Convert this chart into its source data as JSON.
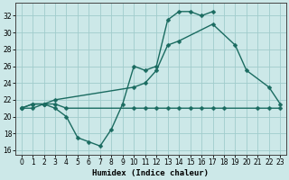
{
  "xlabel": "Humidex (Indice chaleur)",
  "bg_color": "#cce8e8",
  "grid_color": "#a0cccc",
  "line_color": "#1a6b60",
  "line_width": 1.0,
  "marker_size": 2.5,
  "xlim": [
    -0.5,
    23.5
  ],
  "ylim": [
    15.5,
    33.5
  ],
  "yticks": [
    16,
    18,
    20,
    22,
    24,
    26,
    28,
    30,
    32
  ],
  "xticks": [
    0,
    1,
    2,
    3,
    4,
    5,
    6,
    7,
    8,
    9,
    10,
    11,
    12,
    13,
    14,
    15,
    16,
    17,
    18,
    19,
    20,
    21,
    22,
    23
  ],
  "s1_x": [
    0,
    1,
    2,
    3,
    4,
    5,
    6,
    7,
    8,
    9,
    10,
    11,
    12,
    13,
    14,
    15,
    16,
    17
  ],
  "s1_y": [
    21.0,
    21.5,
    21.5,
    21.0,
    20.0,
    17.5,
    17.0,
    16.5,
    18.5,
    21.5,
    26.0,
    25.5,
    26.0,
    31.5,
    32.5,
    32.5,
    32.0,
    32.5
  ],
  "s2_x": [
    0,
    1,
    2,
    3,
    10,
    11,
    12,
    13,
    14,
    17,
    19,
    20,
    22,
    23
  ],
  "s2_y": [
    21.0,
    21.5,
    21.5,
    22.0,
    23.5,
    24.0,
    25.5,
    28.5,
    29.0,
    31.0,
    28.5,
    25.5,
    23.5,
    21.5
  ],
  "s3_x": [
    0,
    1,
    2,
    3,
    4,
    10,
    11,
    12,
    13,
    14,
    15,
    16,
    17,
    18,
    21,
    22,
    23
  ],
  "s3_y": [
    21.0,
    21.0,
    21.5,
    21.5,
    21.0,
    21.0,
    21.0,
    21.0,
    21.0,
    21.0,
    21.0,
    21.0,
    21.0,
    21.0,
    21.0,
    21.0,
    21.0
  ]
}
